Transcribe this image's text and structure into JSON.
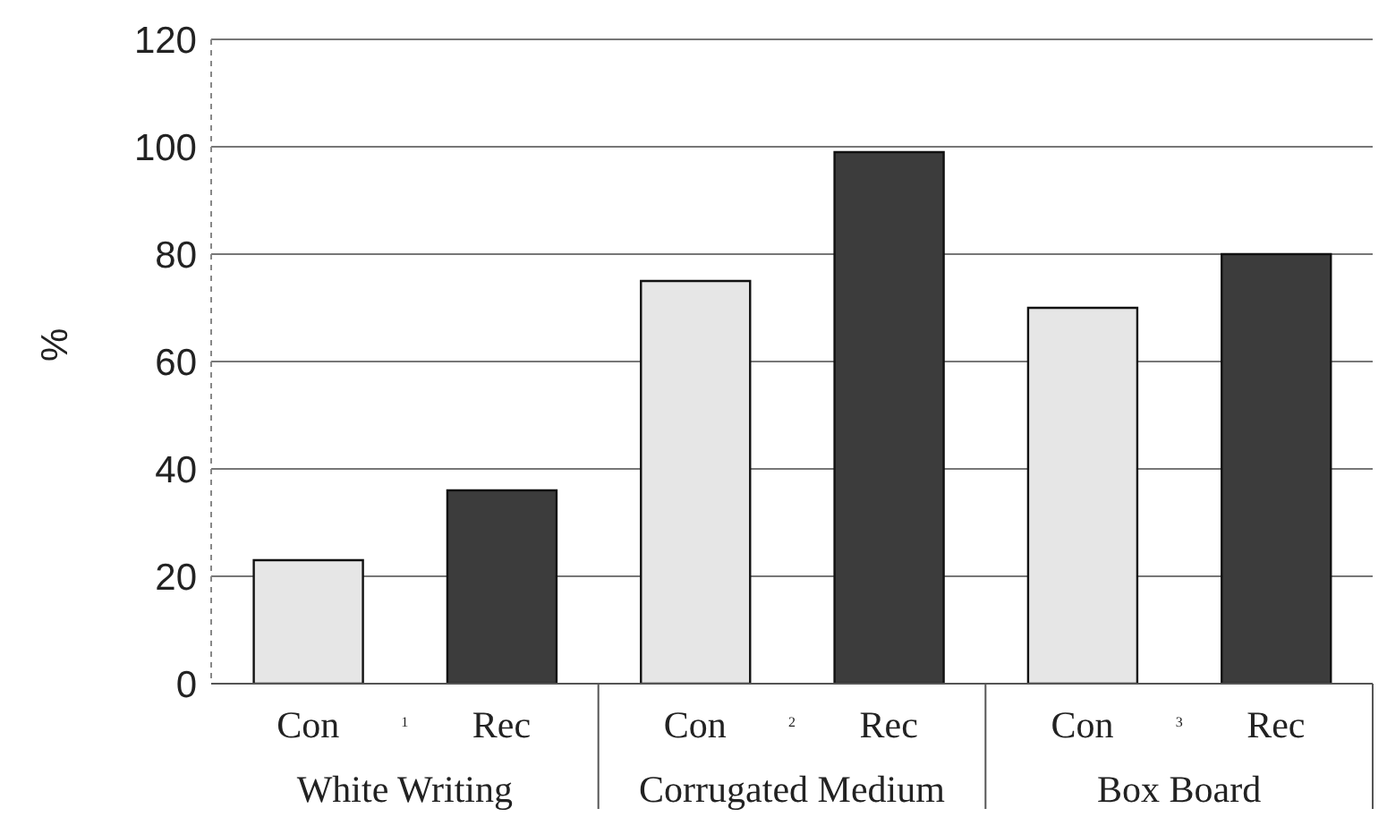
{
  "chart_data": {
    "type": "bar",
    "ylabel": "%",
    "categories": [
      "Con",
      "Rec",
      "Con",
      "Rec",
      "Con",
      "Rec"
    ],
    "values": [
      23,
      36,
      75,
      99,
      70,
      80
    ],
    "colors": [
      "#e6e6e6",
      "#3c3c3c",
      "#e6e6e6",
      "#3c3c3c",
      "#e6e6e6",
      "#3c3c3c"
    ],
    "annotations": [
      "1",
      "White Writing",
      "2",
      "Corrugated Medium",
      "3",
      "Box Board"
    ],
    "ylim": [
      0,
      120
    ],
    "yticks": [
      0,
      20,
      40,
      60,
      80,
      100,
      120
    ],
    "grid": "y"
  }
}
